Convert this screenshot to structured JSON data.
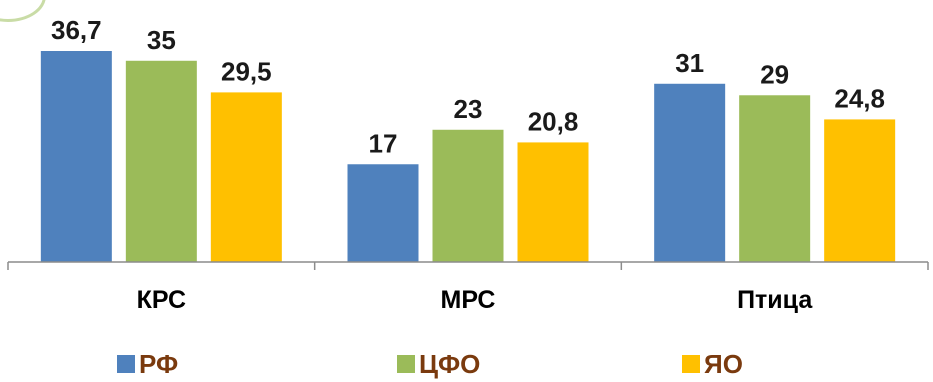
{
  "chart_data": {
    "type": "bar",
    "categories": [
      "КРС",
      "МРС",
      "Птица"
    ],
    "series": [
      {
        "name": "РФ",
        "color": "#4f81bd",
        "values": [
          36.7,
          17,
          31
        ],
        "labels": [
          "36,7",
          "17",
          "31"
        ]
      },
      {
        "name": "ЦФО",
        "color": "#9bbb59",
        "values": [
          35,
          23,
          29
        ],
        "labels": [
          "35",
          "23",
          "29"
        ]
      },
      {
        "name": "ЯО",
        "color": "#ffc000",
        "values": [
          29.5,
          20.8,
          24.8
        ],
        "labels": [
          "29,5",
          "20,8",
          "24,8"
        ]
      }
    ],
    "title": "",
    "xlabel": "",
    "ylabel": "",
    "ylim": [
      0,
      37
    ],
    "grid": false,
    "legend": "bottom"
  }
}
